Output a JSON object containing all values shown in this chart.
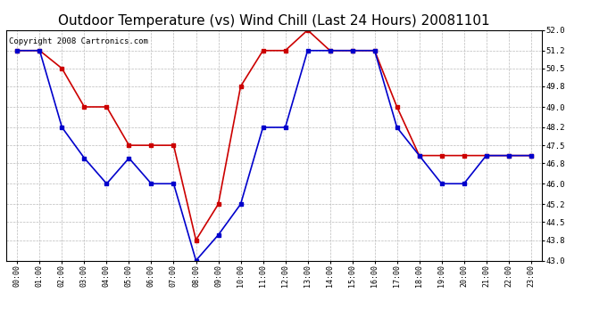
{
  "title": "Outdoor Temperature (vs) Wind Chill (Last 24 Hours) 20081101",
  "copyright": "Copyright 2008 Cartronics.com",
  "hours": [
    "00:00",
    "01:00",
    "02:00",
    "03:00",
    "04:00",
    "05:00",
    "06:00",
    "07:00",
    "08:00",
    "09:00",
    "10:00",
    "11:00",
    "12:00",
    "13:00",
    "14:00",
    "15:00",
    "16:00",
    "17:00",
    "18:00",
    "19:00",
    "20:00",
    "21:00",
    "22:00",
    "23:00"
  ],
  "temp": [
    51.2,
    51.2,
    50.5,
    49.0,
    49.0,
    47.5,
    47.5,
    47.5,
    43.8,
    45.2,
    49.8,
    51.2,
    51.2,
    52.0,
    51.2,
    51.2,
    51.2,
    49.0,
    47.1,
    47.1,
    47.1,
    47.1,
    47.1,
    47.1
  ],
  "wind_chill": [
    51.2,
    51.2,
    48.2,
    47.0,
    46.0,
    47.0,
    46.0,
    46.0,
    43.0,
    44.0,
    45.2,
    48.2,
    48.2,
    51.2,
    51.2,
    51.2,
    51.2,
    48.2,
    47.1,
    46.0,
    46.0,
    47.1,
    47.1,
    47.1
  ],
  "ylim": [
    43.0,
    52.0
  ],
  "yticks": [
    43.0,
    43.8,
    44.5,
    45.2,
    46.0,
    46.8,
    47.5,
    48.2,
    49.0,
    49.8,
    50.5,
    51.2,
    52.0
  ],
  "temp_color": "#cc0000",
  "wind_chill_color": "#0000cc",
  "bg_color": "#ffffff",
  "grid_color": "#bbbbbb",
  "title_fontsize": 11,
  "copyright_fontsize": 6.5
}
